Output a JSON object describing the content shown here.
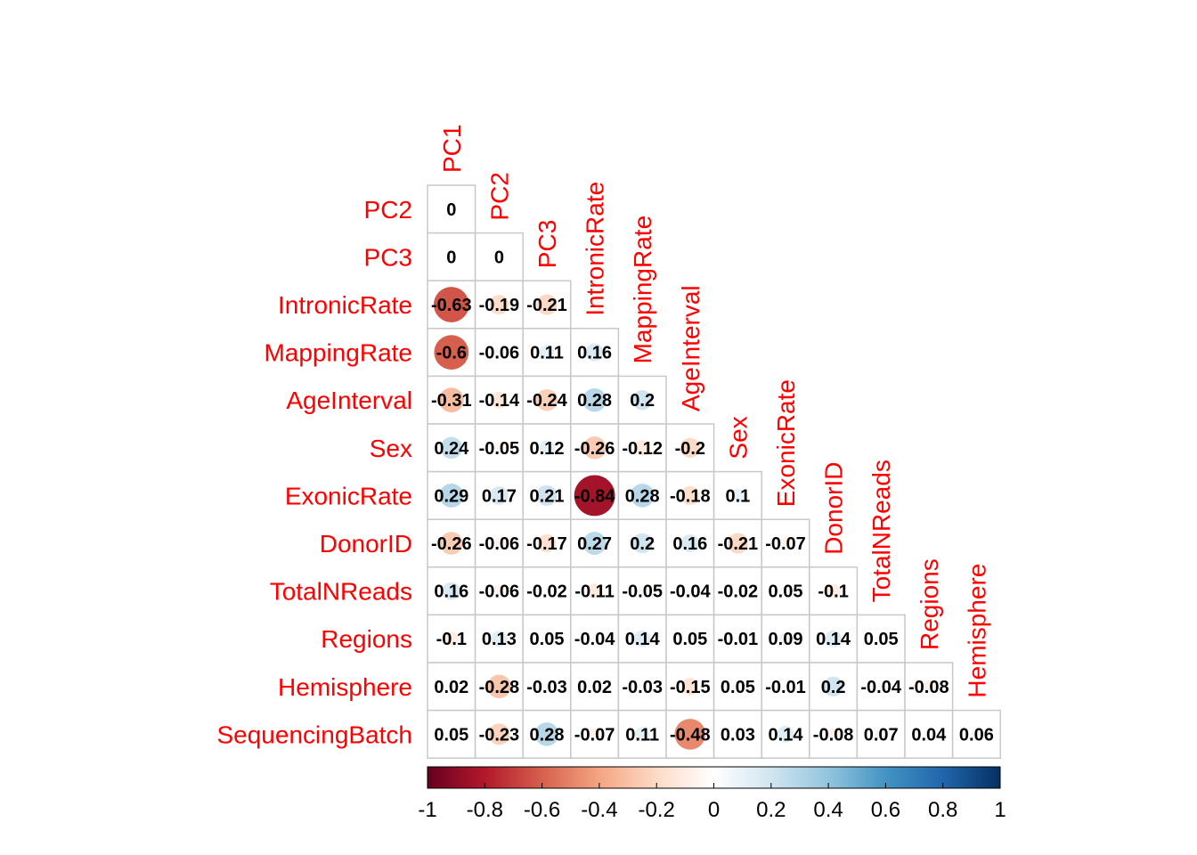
{
  "chart_data": {
    "type": "heatmap",
    "subtype": "correlation-matrix-lower-triangle-circle",
    "title": "",
    "variables": [
      "PC1",
      "PC2",
      "PC3",
      "IntronicRate",
      "MappingRate",
      "AgeInterval",
      "Sex",
      "ExonicRate",
      "DonorID",
      "TotalNReads",
      "Regions",
      "Hemisphere",
      "SequencingBatch"
    ],
    "row_labels": [
      "PC2",
      "PC3",
      "IntronicRate",
      "MappingRate",
      "AgeInterval",
      "Sex",
      "ExonicRate",
      "DonorID",
      "TotalNReads",
      "Regions",
      "Hemisphere",
      "SequencingBatch"
    ],
    "column_labels": [
      "PC1",
      "PC2",
      "PC3",
      "IntronicRate",
      "MappingRate",
      "AgeInterval",
      "Sex",
      "ExonicRate",
      "DonorID",
      "TotalNReads",
      "Regions",
      "Hemisphere"
    ],
    "values": [
      [
        0
      ],
      [
        0,
        0
      ],
      [
        -0.63,
        -0.19,
        -0.21
      ],
      [
        -0.6,
        -0.06,
        0.11,
        0.16
      ],
      [
        -0.31,
        -0.14,
        -0.24,
        0.28,
        0.2
      ],
      [
        0.24,
        -0.05,
        0.12,
        -0.26,
        -0.12,
        -0.2
      ],
      [
        0.29,
        0.17,
        0.21,
        -0.84,
        0.28,
        -0.18,
        0.1
      ],
      [
        -0.26,
        -0.06,
        -0.17,
        0.27,
        0.2,
        0.16,
        -0.21,
        -0.07
      ],
      [
        0.16,
        -0.06,
        -0.02,
        -0.11,
        -0.05,
        -0.04,
        -0.02,
        0.05,
        -0.1
      ],
      [
        -0.1,
        0.13,
        0.05,
        -0.04,
        0.14,
        0.05,
        -0.01,
        0.09,
        0.14,
        0.05
      ],
      [
        0.02,
        -0.28,
        -0.03,
        0.02,
        -0.03,
        -0.15,
        0.05,
        -0.01,
        0.2,
        -0.04,
        -0.08
      ],
      [
        0.05,
        -0.23,
        0.28,
        -0.07,
        0.11,
        -0.48,
        0.03,
        0.14,
        -0.08,
        0.07,
        0.04,
        0.06
      ]
    ],
    "value_labels": [
      [
        "0"
      ],
      [
        "0",
        "0"
      ],
      [
        "-0.63",
        "-0.19",
        "-0.21"
      ],
      [
        "-0.6",
        "-0.06",
        "0.11",
        "0.16"
      ],
      [
        "-0.31",
        "-0.14",
        "-0.24",
        "0.28",
        "0.2"
      ],
      [
        "0.24",
        "-0.05",
        "0.12",
        "-0.26",
        "-0.12",
        "-0.2"
      ],
      [
        "0.29",
        "0.17",
        "0.21",
        "-0.84",
        "0.28",
        "-0.18",
        "0.1"
      ],
      [
        "-0.26",
        "-0.06",
        "-0.17",
        "0.27",
        "0.2",
        "0.16",
        "-0.21",
        "-0.07"
      ],
      [
        "0.16",
        "-0.06",
        "-0.02",
        "-0.11",
        "-0.05",
        "-0.04",
        "-0.02",
        "0.05",
        "-0.1"
      ],
      [
        "-0.1",
        "0.13",
        "0.05",
        "-0.04",
        "0.14",
        "0.05",
        "-0.01",
        "0.09",
        "0.14",
        "0.05"
      ],
      [
        "0.02",
        "-0.28",
        "-0.03",
        "0.02",
        "-0.03",
        "-0.15",
        "0.05",
        "-0.01",
        "0.2",
        "-0.04",
        "-0.08"
      ],
      [
        "0.05",
        "-0.23",
        "0.28",
        "-0.07",
        "0.11",
        "-0.48",
        "0.03",
        "0.14",
        "-0.08",
        "0.07",
        "0.04",
        "0.06"
      ]
    ],
    "colorbar": {
      "range": [
        -1,
        1
      ],
      "ticks": [
        "-1",
        "-0.8",
        "-0.6",
        "-0.4",
        "-0.2",
        "0",
        "0.2",
        "0.4",
        "0.6",
        "0.8",
        "1"
      ],
      "colors": [
        "#67001F",
        "#B2182B",
        "#D6604D",
        "#F4A582",
        "#FDDBC7",
        "#FFFFFF",
        "#D1E5F0",
        "#92C5DE",
        "#4393C3",
        "#2166AC",
        "#053061"
      ]
    },
    "label_color": "#FF0000",
    "grid": true,
    "legend": "bottom"
  }
}
